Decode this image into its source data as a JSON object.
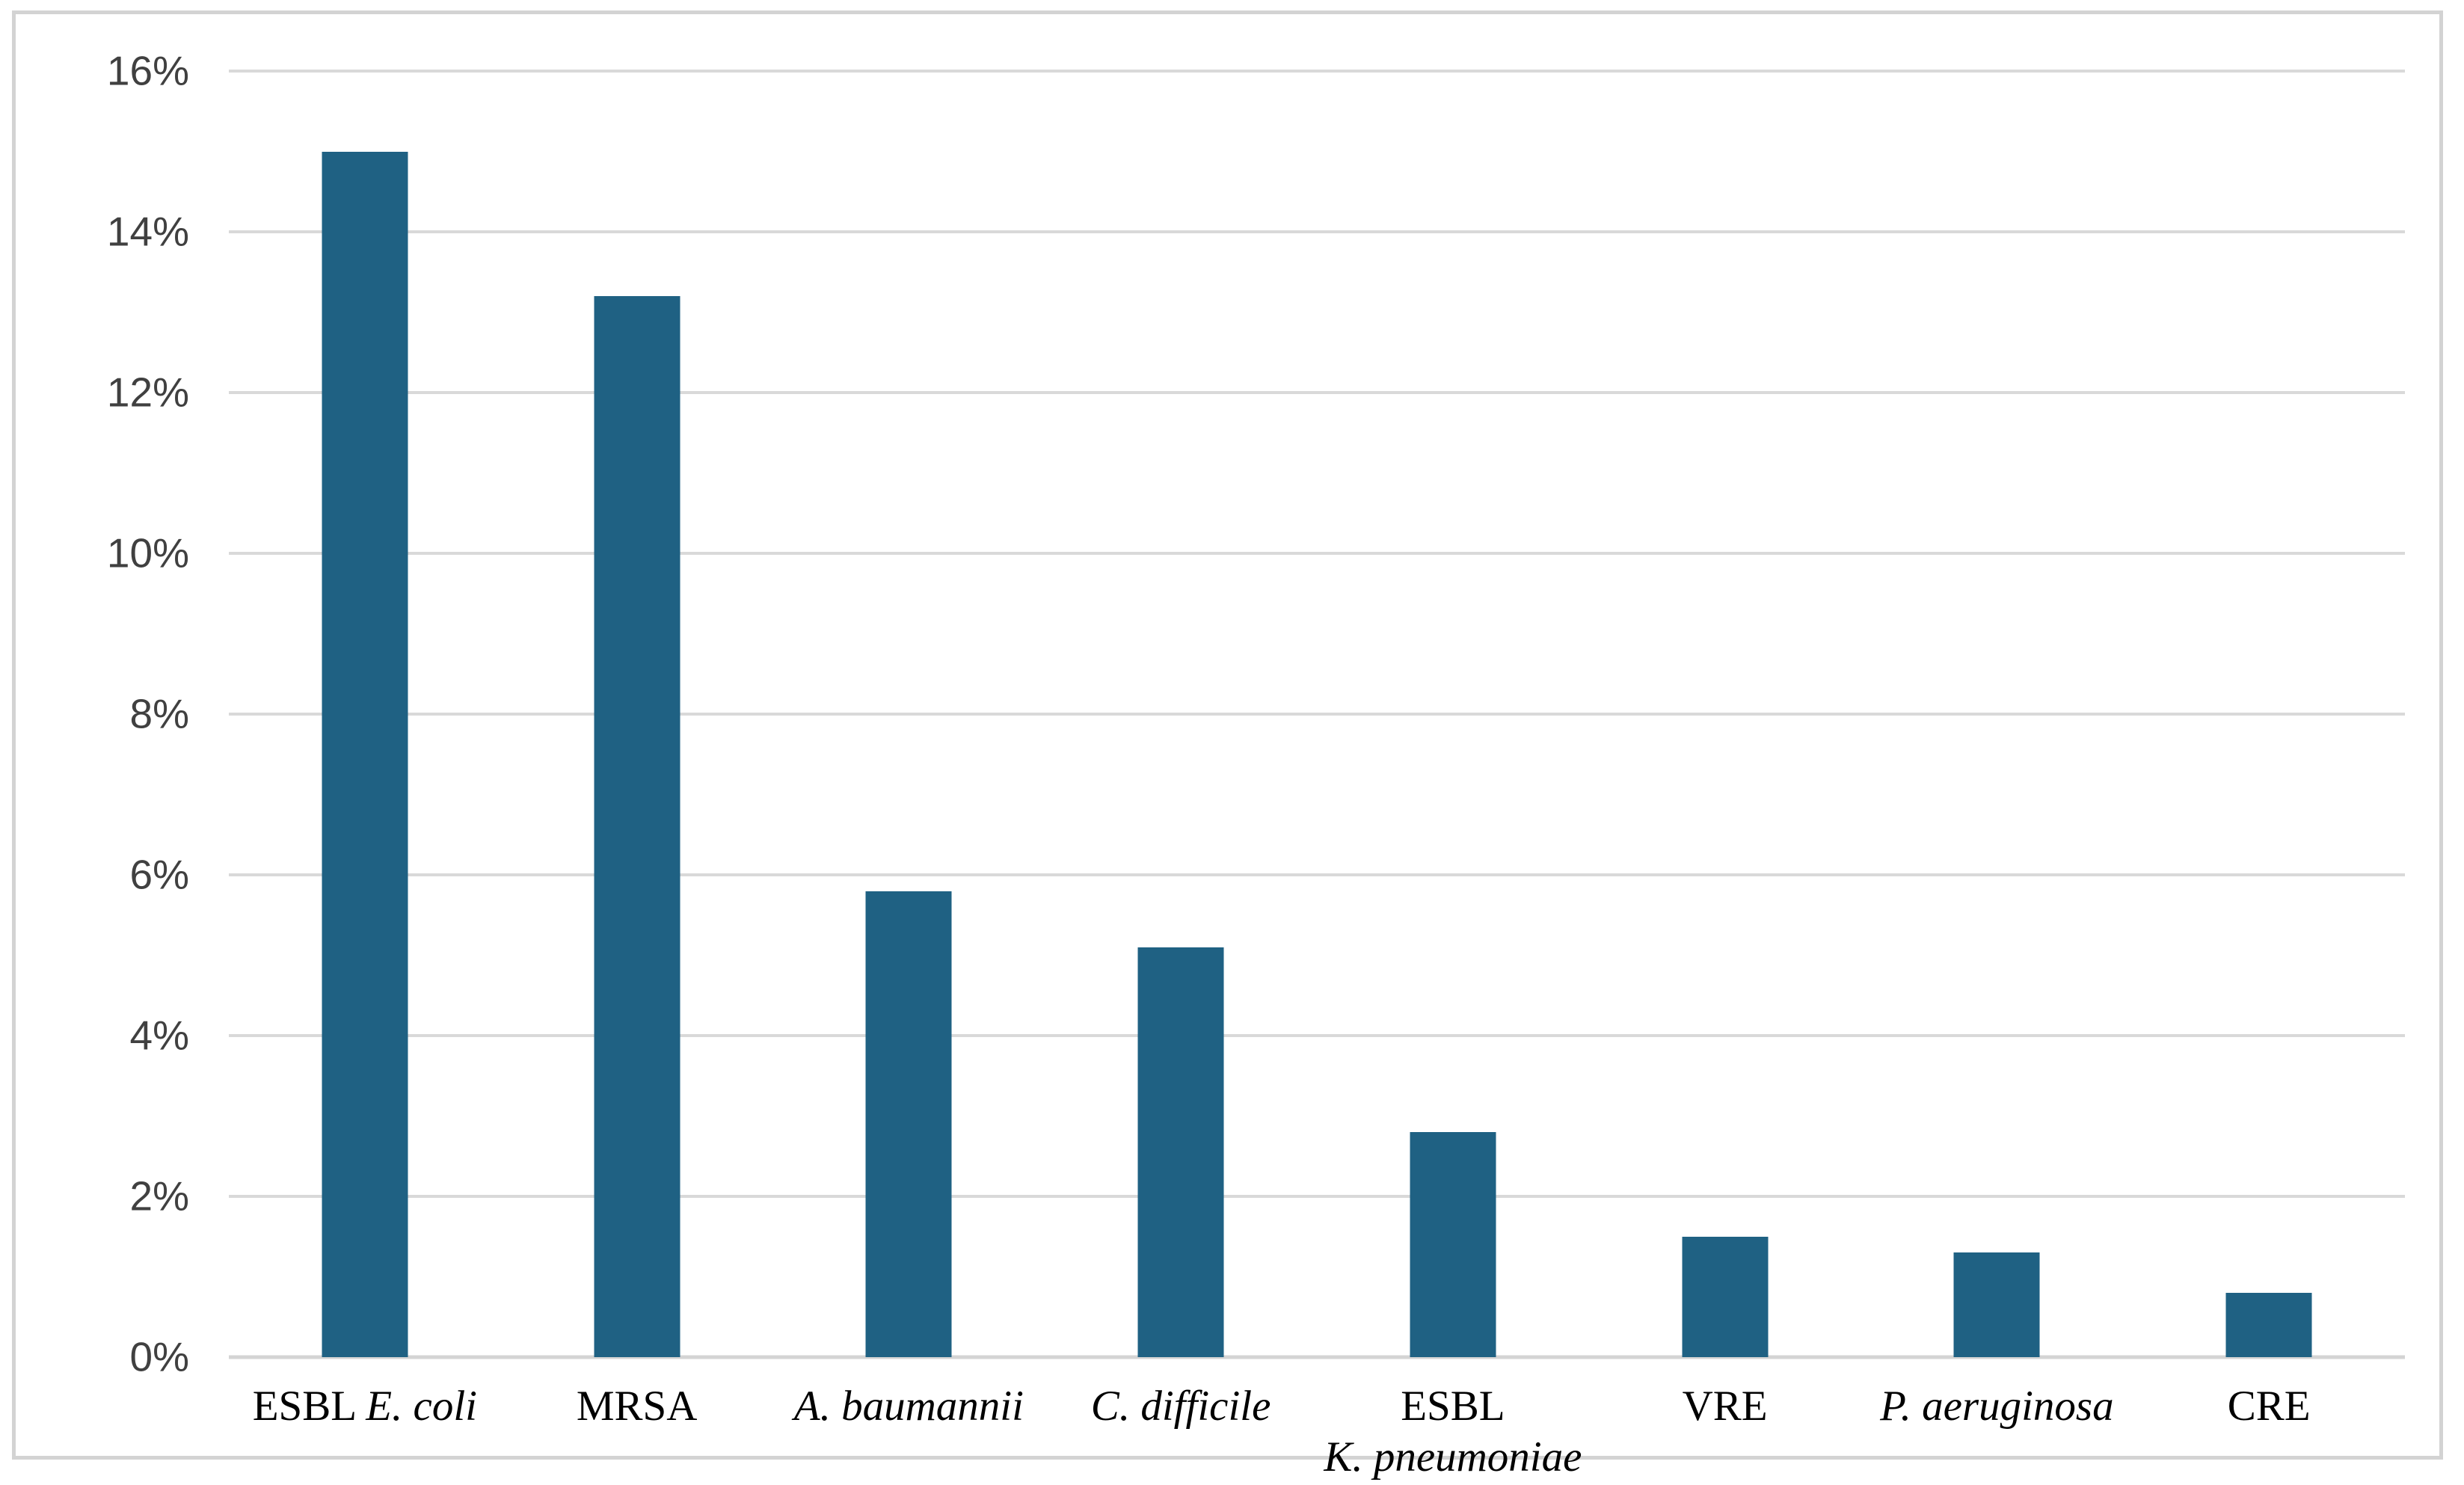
{
  "figure": {
    "background_color": "#ffffff",
    "frame_border_color": "#d3d3d3"
  },
  "chart_data": {
    "type": "bar",
    "title": "",
    "xlabel": "",
    "ylabel": "",
    "categories": [
      "ESBL E. coli",
      "MRSA",
      "A. baumannii",
      "C. difficile",
      "ESBL K. pneumoniae",
      "VRE",
      "P. aeruginosa",
      "CRE"
    ],
    "values": [
      15.0,
      13.2,
      5.8,
      5.1,
      2.8,
      1.5,
      1.3,
      0.8
    ],
    "value_unit": "%",
    "ylim": [
      0,
      16
    ],
    "y_tick_step": 2,
    "y_ticks": [
      0,
      2,
      4,
      6,
      8,
      10,
      12,
      14,
      16
    ],
    "y_tick_labels": [
      "0%",
      "2%",
      "4%",
      "6%",
      "8%",
      "10%",
      "12%",
      "14%",
      "16%"
    ],
    "grid": "horizontal",
    "legend": "none",
    "bar_color": "#1f6183",
    "gridline_color": "#d9d9d9",
    "baseline_color": "#d4d4d4",
    "y_tick_label_color": "#404040",
    "category_label_color": "#000000",
    "category_label_lines": [
      [
        [
          {
            "text": "ESBL ",
            "italic": false
          },
          {
            "text": "E. coli",
            "italic": true
          }
        ]
      ],
      [
        [
          {
            "text": "MRSA",
            "italic": false
          }
        ]
      ],
      [
        [
          {
            "text": "A. baumannii",
            "italic": true
          }
        ]
      ],
      [
        [
          {
            "text": "C. difficile",
            "italic": true
          }
        ]
      ],
      [
        [
          {
            "text": "ESBL",
            "italic": false
          }
        ],
        [
          {
            "text": "K. pneumoniae",
            "italic": true
          }
        ]
      ],
      [
        [
          {
            "text": "VRE",
            "italic": false
          }
        ]
      ],
      [
        [
          {
            "text": "P. aeruginosa",
            "italic": true
          }
        ]
      ],
      [
        [
          {
            "text": "CRE",
            "italic": false
          }
        ]
      ]
    ]
  }
}
